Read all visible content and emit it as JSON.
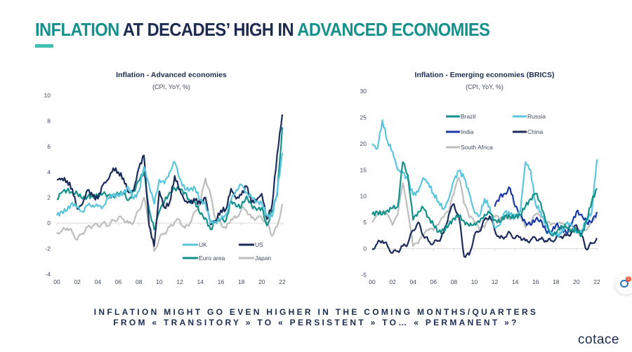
{
  "header": {
    "title_part1": "INFLATION",
    "title_part2": " AT DECADES’ HIGH IN ",
    "title_part3": "ADVANCED ECONOMIES"
  },
  "footer": {
    "line1": "INFLATION MIGHT GO EVEN HIGHER IN THE COMING MONTHS/QUARTERS",
    "line2": "FROM « TRANSITORY » TO « PERSISTENT » TO… « PERMANENT »?"
  },
  "logo": {
    "text": "cotace"
  },
  "chat_widget": {
    "badge": "1"
  },
  "colors": {
    "title_dark": "#1c2b4f",
    "title_accent": "#14918a",
    "bar_accent": "#3fbfb1"
  },
  "chart_data": [
    {
      "type": "line",
      "title": "Inflation - Advanced economies",
      "subtitle": "(CPI, YoY, %)",
      "xlabel": "",
      "ylabel": "",
      "xlim": [
        2000,
        2022
      ],
      "ylim": [
        -4,
        10
      ],
      "yticks": [
        "-4",
        "-2",
        "0",
        "2",
        "4",
        "6",
        "8",
        "10"
      ],
      "ytick_values": [
        -4,
        -2,
        0,
        2,
        4,
        6,
        8,
        10
      ],
      "xticks": [
        "00",
        "02",
        "04",
        "06",
        "08",
        "10",
        "12",
        "14",
        "16",
        "18",
        "20",
        "22"
      ],
      "xtick_values": [
        2000,
        2002,
        2004,
        2006,
        2008,
        2010,
        2012,
        2014,
        2016,
        2018,
        2020,
        2022
      ],
      "grid": false,
      "zero_line": true,
      "legend_position": "bottom-right",
      "x": [
        2000,
        2000.5,
        2001,
        2001.5,
        2002,
        2002.5,
        2003,
        2003.5,
        2004,
        2004.5,
        2005,
        2005.5,
        2006,
        2006.5,
        2007,
        2007.5,
        2008,
        2008.5,
        2009,
        2009.5,
        2010,
        2010.5,
        2011,
        2011.5,
        2012,
        2012.5,
        2013,
        2013.5,
        2014,
        2014.5,
        2015,
        2015.5,
        2016,
        2016.5,
        2017,
        2017.5,
        2018,
        2018.5,
        2019,
        2019.5,
        2020,
        2020.5,
        2021,
        2021.5,
        2022
      ],
      "series": [
        {
          "name": "UK",
          "color": "#5bc5dc",
          "values": [
            0.6,
            0.9,
            1.0,
            1.6,
            1.2,
            0.9,
            1.4,
            1.4,
            1.3,
            1.3,
            1.9,
            2.3,
            2.1,
            2.4,
            2.8,
            1.9,
            2.5,
            4.4,
            3.0,
            1.5,
            3.4,
            3.1,
            4.0,
            4.8,
            3.5,
            2.6,
            2.7,
            2.7,
            1.8,
            1.5,
            0.0,
            0.1,
            0.3,
            0.7,
            1.8,
            2.6,
            3.0,
            2.4,
            2.0,
            1.7,
            1.5,
            0.6,
            0.5,
            2.4,
            5.5
          ]
        },
        {
          "name": "US",
          "color": "#1b2c5a",
          "values": [
            3.4,
            3.5,
            3.3,
            2.7,
            1.1,
            1.5,
            2.6,
            2.1,
            1.9,
            3.0,
            3.4,
            4.3,
            4.0,
            3.5,
            2.4,
            2.6,
            4.3,
            5.3,
            -0.2,
            -1.8,
            2.5,
            1.2,
            1.6,
            3.7,
            2.6,
            1.7,
            1.6,
            1.8,
            1.5,
            2.0,
            -0.1,
            0.2,
            1.0,
            1.1,
            2.7,
            1.9,
            2.2,
            2.9,
            1.6,
            1.8,
            2.3,
            0.3,
            1.4,
            5.4,
            8.5
          ]
        },
        {
          "name": "Euro area",
          "color": "#14918a",
          "values": [
            1.9,
            2.4,
            2.6,
            2.4,
            2.3,
            1.9,
            2.1,
            2.1,
            2.1,
            2.3,
            2.2,
            2.1,
            2.3,
            2.3,
            1.8,
            2.5,
            3.3,
            4.0,
            1.1,
            -0.5,
            0.9,
            1.7,
            2.4,
            2.7,
            2.6,
            2.4,
            1.7,
            1.6,
            0.7,
            0.4,
            -0.5,
            0.2,
            0.3,
            0.2,
            1.8,
            1.3,
            1.3,
            2.1,
            1.4,
            1.0,
            1.2,
            -0.2,
            0.9,
            2.2,
            7.5
          ]
        },
        {
          "name": "Japan",
          "color": "#bdbdbd",
          "values": [
            -0.7,
            -0.6,
            -0.4,
            -0.7,
            -1.3,
            -0.8,
            -0.3,
            -0.2,
            -0.2,
            0.0,
            -0.2,
            0.2,
            0.4,
            0.3,
            0.0,
            0.1,
            1.0,
            2.0,
            -0.1,
            -2.2,
            -1.2,
            -0.8,
            -0.3,
            0.1,
            0.2,
            -0.4,
            0.0,
            0.9,
            1.6,
            3.5,
            2.2,
            0.3,
            0.0,
            -0.4,
            0.3,
            0.4,
            1.1,
            1.0,
            0.4,
            0.4,
            0.4,
            0.1,
            -1.0,
            -0.3,
            1.5
          ]
        }
      ]
    },
    {
      "type": "line",
      "title": "Inflation - Emerging economies (BRICS)",
      "subtitle": "(CPI, YoY, %)",
      "xlabel": "",
      "ylabel": "",
      "xlim": [
        2000,
        2022
      ],
      "ylim": [
        -5,
        30
      ],
      "yticks": [
        "-5",
        "0",
        "5",
        "10",
        "15",
        "20",
        "25",
        "30"
      ],
      "ytick_values": [
        -5,
        0,
        5,
        10,
        15,
        20,
        25,
        30
      ],
      "xticks": [
        "00",
        "02",
        "04",
        "06",
        "08",
        "10",
        "12",
        "14",
        "16",
        "18",
        "20",
        "22"
      ],
      "xtick_values": [
        2000,
        2002,
        2004,
        2006,
        2008,
        2010,
        2012,
        2014,
        2016,
        2018,
        2020,
        2022
      ],
      "grid": false,
      "zero_line": true,
      "legend_position": "top-center",
      "x": [
        2000,
        2000.5,
        2001,
        2001.5,
        2002,
        2002.5,
        2003,
        2003.5,
        2004,
        2004.5,
        2005,
        2005.5,
        2006,
        2006.5,
        2007,
        2007.5,
        2008,
        2008.5,
        2009,
        2009.5,
        2010,
        2010.5,
        2011,
        2011.5,
        2012,
        2012.5,
        2013,
        2013.5,
        2014,
        2014.5,
        2015,
        2015.5,
        2016,
        2016.5,
        2017,
        2017.5,
        2018,
        2018.5,
        2019,
        2019.5,
        2020,
        2020.5,
        2021,
        2021.5,
        2022
      ],
      "series": [
        {
          "name": "Brazil",
          "color": "#14918a",
          "values": [
            6.5,
            7.0,
            6.5,
            7.3,
            7.7,
            8.0,
            16.5,
            14.0,
            5.5,
            7.0,
            7.8,
            6.0,
            4.5,
            3.2,
            3.5,
            4.5,
            5.8,
            6.2,
            5.2,
            4.3,
            4.8,
            5.0,
            6.5,
            6.8,
            5.5,
            5.0,
            6.3,
            6.0,
            6.0,
            6.5,
            8.0,
            9.5,
            10.5,
            8.7,
            5.0,
            2.7,
            2.8,
            4.4,
            4.0,
            3.5,
            3.5,
            2.5,
            5.5,
            9.0,
            11.5
          ]
        },
        {
          "name": "Russia",
          "color": "#5bc5dc",
          "values": [
            20.0,
            19.0,
            24.5,
            20.5,
            18.5,
            15.0,
            14.5,
            13.0,
            10.2,
            10.8,
            13.5,
            12.5,
            10.5,
            9.0,
            7.5,
            9.5,
            13.0,
            14.8,
            13.5,
            10.5,
            7.0,
            6.2,
            9.5,
            8.0,
            4.0,
            4.5,
            7.0,
            6.5,
            6.0,
            7.0,
            16.5,
            15.0,
            8.5,
            7.0,
            4.5,
            3.0,
            2.5,
            2.8,
            4.8,
            4.5,
            3.0,
            3.5,
            5.5,
            7.0,
            17.0
          ]
        },
        {
          "name": "India",
          "color": "#1a3aa6",
          "values": [
            null,
            null,
            null,
            null,
            null,
            null,
            null,
            null,
            null,
            null,
            null,
            null,
            null,
            null,
            null,
            null,
            null,
            null,
            null,
            null,
            null,
            null,
            null,
            null,
            8.0,
            10.0,
            10.5,
            11.5,
            8.0,
            6.5,
            5.0,
            4.5,
            5.5,
            5.5,
            3.5,
            3.0,
            4.5,
            4.0,
            3.0,
            4.5,
            7.0,
            6.5,
            5.0,
            5.0,
            7.0
          ]
        },
        {
          "name": "China",
          "color": "#1b2c5a",
          "values": [
            0.0,
            1.0,
            1.5,
            0.5,
            -0.8,
            -0.5,
            0.5,
            1.0,
            3.5,
            5.0,
            2.5,
            1.5,
            1.0,
            1.5,
            3.0,
            6.5,
            8.5,
            6.0,
            -1.5,
            -1.2,
            2.5,
            3.3,
            5.5,
            6.2,
            3.5,
            2.0,
            2.2,
            3.0,
            2.0,
            2.2,
            1.5,
            1.6,
            2.0,
            1.8,
            1.5,
            1.5,
            2.0,
            2.3,
            2.5,
            3.0,
            4.5,
            2.5,
            -0.2,
            1.0,
            2.0
          ]
        },
        {
          "name": "South Africa",
          "color": "#bdbdbd",
          "values": [
            5.0,
            6.5,
            7.0,
            6.5,
            4.5,
            6.5,
            12.5,
            7.0,
            0.5,
            1.0,
            2.5,
            3.5,
            3.5,
            4.5,
            6.0,
            7.0,
            10.5,
            13.5,
            8.5,
            6.0,
            5.0,
            3.5,
            4.0,
            5.5,
            6.0,
            5.5,
            5.7,
            5.5,
            6.2,
            6.0,
            4.0,
            4.5,
            6.5,
            6.0,
            5.0,
            4.5,
            4.5,
            4.8,
            4.0,
            3.5,
            4.0,
            3.0,
            3.5,
            5.0,
            6.0
          ]
        }
      ]
    }
  ]
}
